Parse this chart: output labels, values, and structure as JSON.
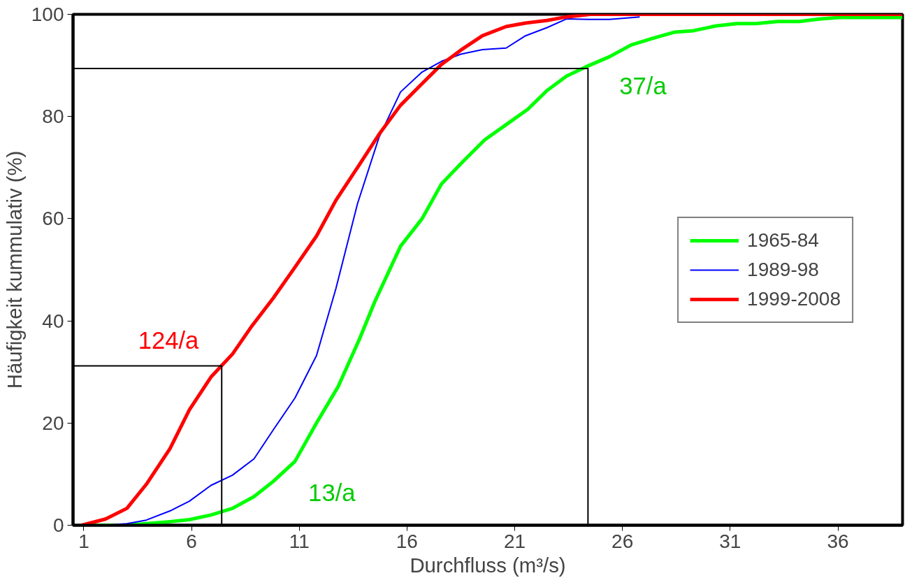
{
  "chart_data": {
    "type": "line",
    "xlabel": "Durchfluss (m³/s)",
    "ylabel": "Häufigkeit kummulativ (%)",
    "xlim": [
      0.5,
      39
    ],
    "ylim": [
      0,
      100
    ],
    "xticks": [
      1,
      6,
      11,
      16,
      21,
      26,
      31,
      36
    ],
    "yticks": [
      0,
      20,
      40,
      60,
      80,
      100
    ],
    "grid": false,
    "legend": "right",
    "marker": "none",
    "line_style": "solid",
    "series": [
      {
        "name": "1965-84",
        "color": "#00ff00",
        "x": [
          0.9,
          2,
          3,
          3.9,
          5,
          5.9,
          6.9,
          7.9,
          8.9,
          9.8,
          10.8,
          11.8,
          12.8,
          13.8,
          14.5,
          15.7,
          16.7,
          17.6,
          18.6,
          19.6,
          20.6,
          21.6,
          22.5,
          23.4,
          24.4,
          25.4,
          26.4,
          27.4,
          28.4,
          29.3,
          30.3,
          31.3,
          32.2,
          33.2,
          34.2,
          35.2,
          36.1,
          39
        ],
        "values": [
          0,
          0,
          0,
          0.3,
          0.7,
          1.1,
          2,
          3.3,
          5.6,
          8.6,
          12.5,
          20,
          27.1,
          36.5,
          43.7,
          54.6,
          60,
          66.8,
          71.2,
          75.4,
          78.4,
          81.4,
          85.1,
          87.9,
          89.9,
          91.7,
          94,
          95.3,
          96.5,
          96.8,
          97.7,
          98.2,
          98.2,
          98.6,
          98.6,
          99.1,
          99.4,
          99.4
        ]
      },
      {
        "name": "1989-98",
        "color": "#0000ff",
        "x": [
          0.9,
          2,
          3,
          3.9,
          5,
          5.9,
          6.9,
          7.9,
          8.9,
          9.8,
          10.8,
          11.8,
          12.7,
          13.7,
          14.7,
          15.7,
          16.7,
          17.6,
          18.5,
          19.5,
          20.6,
          21.5,
          22.5,
          23.4,
          24.4,
          25.4,
          26.8
        ],
        "values": [
          0,
          0,
          0.3,
          1,
          2.8,
          4.7,
          7.8,
          9.8,
          13,
          18.7,
          24.9,
          33.2,
          46.3,
          62.9,
          75.9,
          84.8,
          88.7,
          90.8,
          92.2,
          93.1,
          93.4,
          95.8,
          97.4,
          99.1,
          99,
          99,
          99.5
        ]
      },
      {
        "name": "1999-2008",
        "color": "#ff0000",
        "x": [
          0.9,
          2,
          3,
          3.9,
          5,
          5.9,
          6.9,
          7.9,
          8.8,
          9.8,
          10.8,
          11.8,
          12.7,
          13.7,
          14.7,
          15.7,
          16.6,
          17.6,
          18.5,
          19.5,
          20.6,
          21.5,
          22.5,
          23.4,
          24.5,
          39
        ],
        "values": [
          0,
          1.2,
          3.3,
          8,
          15,
          22.6,
          29,
          33.5,
          39,
          44.5,
          50.5,
          56.6,
          63.6,
          70,
          76.5,
          82.2,
          86,
          90.2,
          93,
          95.8,
          97.6,
          98.3,
          98.8,
          99.5,
          100,
          100
        ]
      },
      {
        "color": "#000000",
        "x": [
          0.5,
          7.4,
          7.4
        ],
        "values": [
          31.2,
          31.2,
          0
        ]
      },
      {
        "color": "#000000",
        "x": [
          0.5,
          24.4,
          24.4
        ],
        "values": [
          89.4,
          89.4,
          0
        ]
      }
    ],
    "annotations": [
      "124/a",
      "13/a",
      "37/a"
    ]
  }
}
